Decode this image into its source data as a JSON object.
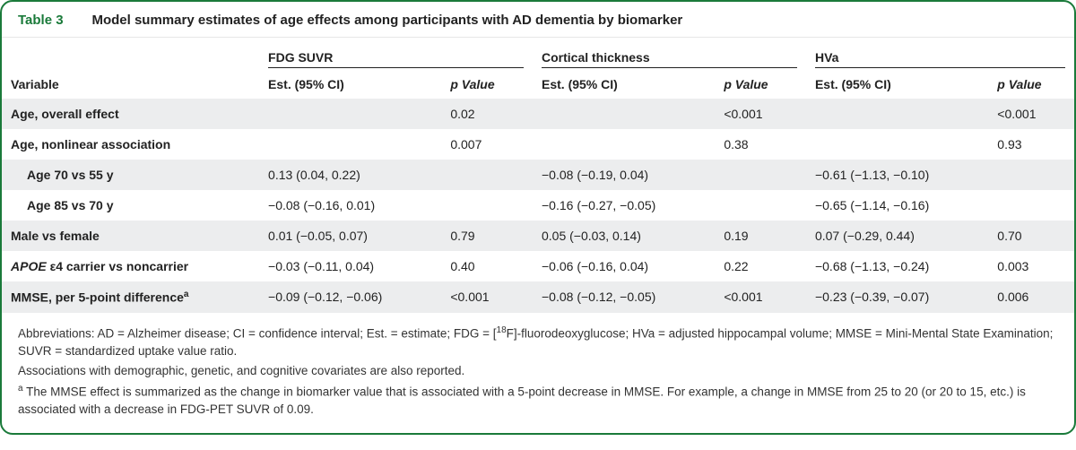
{
  "title": {
    "tag": "Table 3",
    "text": "Model summary estimates of age effects among participants with AD dementia by biomarker"
  },
  "colgroups": [
    {
      "label": "FDG SUVR",
      "est_header": "Est. (95% CI)",
      "p_header": "p Value"
    },
    {
      "label": "Cortical thickness",
      "est_header": "Est. (95% CI)",
      "p_header": "p Value"
    },
    {
      "label": "HVa",
      "est_header": "Est. (95% CI)",
      "p_header": "p Value"
    }
  ],
  "variable_header": "Variable",
  "rows": [
    {
      "shade": true,
      "bold": true,
      "indent": false,
      "italic": false,
      "label": "Age, overall effect",
      "c": [
        "",
        "0.02",
        "",
        "<0.001",
        "",
        "<0.001"
      ]
    },
    {
      "shade": false,
      "bold": true,
      "indent": false,
      "italic": false,
      "label": "Age, nonlinear association",
      "c": [
        "",
        "0.007",
        "",
        "0.38",
        "",
        "0.93"
      ]
    },
    {
      "shade": true,
      "bold": true,
      "indent": true,
      "italic": false,
      "label": "Age 70 vs 55 y",
      "c": [
        "0.13 (0.04, 0.22)",
        "",
        "−0.08 (−0.19, 0.04)",
        "",
        "−0.61 (−1.13, −0.10)",
        ""
      ]
    },
    {
      "shade": false,
      "bold": true,
      "indent": true,
      "italic": false,
      "label": "Age 85 vs 70 y",
      "c": [
        "−0.08 (−0.16, 0.01)",
        "",
        "−0.16 (−0.27, −0.05)",
        "",
        "−0.65 (−1.14, −0.16)",
        ""
      ]
    },
    {
      "shade": true,
      "bold": true,
      "indent": false,
      "italic": false,
      "label": "Male vs female",
      "c": [
        "0.01 (−0.05, 0.07)",
        "0.79",
        "0.05 (−0.03, 0.14)",
        "0.19",
        "0.07 (−0.29, 0.44)",
        "0.70"
      ]
    },
    {
      "shade": false,
      "bold": true,
      "indent": false,
      "italic": true,
      "label_html": "APOE ε4 carrier vs noncarrier",
      "c": [
        "−0.03 (−0.11, 0.04)",
        "0.40",
        "−0.06 (−0.16, 0.04)",
        "0.22",
        "−0.68 (−1.13, −0.24)",
        "0.003"
      ]
    },
    {
      "shade": true,
      "bold": true,
      "indent": false,
      "italic": false,
      "label_html": "MMSE, per 5-point difference<sup>a</sup>",
      "c": [
        "−0.09 (−0.12, −0.06)",
        "<0.001",
        "−0.08 (−0.12, −0.05)",
        "<0.001",
        "−0.23 (−0.39, −0.07)",
        "0.006"
      ]
    }
  ],
  "footer": {
    "abbrev_html": "Abbreviations: AD = Alzheimer disease; CI = confidence interval; Est. = estimate; FDG = [<sup>18</sup>F]-fluorodeoxyglucose; HVa = adjusted hippocampal volume; MMSE = Mini-Mental State Examination; SUVR = standardized uptake value ratio.",
    "line2": "Associations with demographic, genetic, and cognitive covariates are also reported.",
    "note_html": "<sup>a</sup> The MMSE effect is summarized as the change in biomarker value that is associated with a 5-point decrease in MMSE. For example, a change in MMSE from 25 to 20 (or 20 to 15, etc.) is associated with a decrease in FDG-PET SUVR of 0.09."
  },
  "layout": {
    "col_widths_pct": [
      24,
      17,
      8.5,
      17,
      8.5,
      17,
      8
    ]
  },
  "colors": {
    "border": "#1a7a3a",
    "shade": "#ecedee",
    "text": "#222222",
    "background": "#ffffff"
  }
}
